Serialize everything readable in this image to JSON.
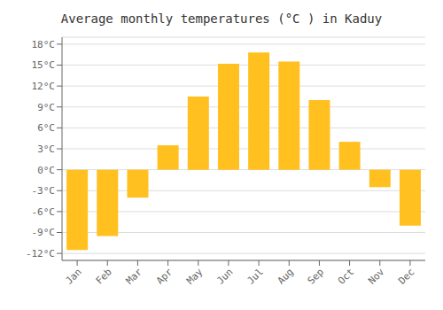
{
  "chart_data": {
    "type": "bar",
    "title": "Average monthly temperatures (°C ) in Kaduy",
    "categories": [
      "Jan",
      "Feb",
      "Mar",
      "Apr",
      "May",
      "Jun",
      "Jul",
      "Aug",
      "Sep",
      "Oct",
      "Nov",
      "Dec"
    ],
    "values": [
      -11.5,
      -9.5,
      -4.0,
      3.5,
      10.5,
      15.2,
      16.8,
      15.5,
      10.0,
      4.0,
      -2.5,
      -8.0
    ],
    "color": "#FFC020",
    "ylim": [
      -13,
      19
    ],
    "yticks": [
      {
        "value": -12,
        "label": "-12°C"
      },
      {
        "value": -9,
        "label": "-9°C"
      },
      {
        "value": -6,
        "label": "-6°C"
      },
      {
        "value": -3,
        "label": "-3°C"
      },
      {
        "value": 0,
        "label": "0°C"
      },
      {
        "value": 3,
        "label": "3°C"
      },
      {
        "value": 6,
        "label": "6°C"
      },
      {
        "value": 9,
        "label": "9°C"
      },
      {
        "value": 12,
        "label": "12°C"
      },
      {
        "value": 15,
        "label": "15°C"
      },
      {
        "value": 18,
        "label": "18°C"
      }
    ],
    "grid": true
  }
}
